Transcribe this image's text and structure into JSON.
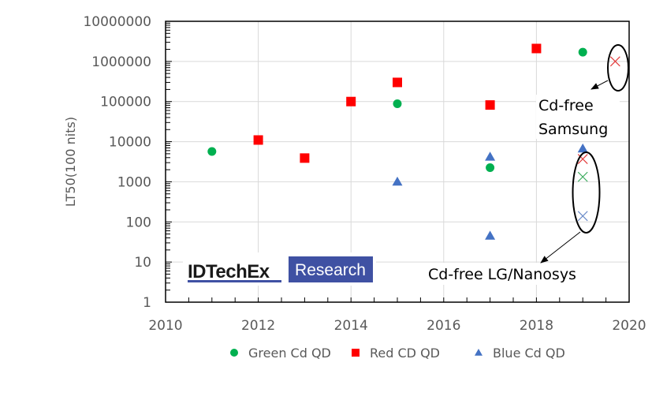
{
  "chart_data": {
    "type": "scatter",
    "title": "",
    "xlabel": "",
    "ylabel": "LT50(100 nits)",
    "xlim": [
      2010,
      2020
    ],
    "ylim": [
      1,
      10000000
    ],
    "yscale": "log",
    "grid": true,
    "x_ticks": [
      "2010",
      "2012",
      "2014",
      "2016",
      "2018",
      "2020"
    ],
    "y_ticks": [
      "1",
      "10",
      "100",
      "1000",
      "10000",
      "100000",
      "1000000",
      "10000000"
    ],
    "legend_position": "bottom",
    "series": [
      {
        "name": "Green Cd QD",
        "marker": "circle",
        "color": "#00b050",
        "points": [
          {
            "x": 2011,
            "y": 5700
          },
          {
            "x": 2015,
            "y": 88000
          },
          {
            "x": 2017,
            "y": 2250
          },
          {
            "x": 2019,
            "y": 1700000
          }
        ]
      },
      {
        "name": "Red CD QD",
        "marker": "square",
        "color": "#ff0000",
        "points": [
          {
            "x": 2012,
            "y": 11000
          },
          {
            "x": 2013,
            "y": 3900
          },
          {
            "x": 2014,
            "y": 100000
          },
          {
            "x": 2015,
            "y": 300000
          },
          {
            "x": 2017,
            "y": 82000
          },
          {
            "x": 2018,
            "y": 2100000
          }
        ]
      },
      {
        "name": "Blue Cd QD",
        "marker": "triangle",
        "color": "#4472c4",
        "points": [
          {
            "x": 2015,
            "y": 1000
          },
          {
            "x": 2017,
            "y": 4200
          },
          {
            "x": 2017,
            "y": 45
          },
          {
            "x": 2019,
            "y": 6700
          }
        ]
      }
    ],
    "cd_free_points": [
      {
        "group": "Samsung",
        "color_name": "red",
        "color": "#e23b3b",
        "x": 2019.7,
        "y": 1000000
      },
      {
        "group": "LG/Nanosys",
        "color_name": "red",
        "color": "#e23b3b",
        "x": 2019,
        "y": 3700
      },
      {
        "group": "LG/Nanosys",
        "color_name": "green",
        "color": "#3aaa5c",
        "x": 2019,
        "y": 1330
      },
      {
        "group": "LG/Nanosys",
        "color_name": "blue",
        "color": "#6b8cc9",
        "x": 2019,
        "y": 140
      }
    ],
    "annotations": {
      "samsung_line1": "Cd-free",
      "samsung_line2": "Samsung",
      "lg": "Cd-free LG/Nanosys"
    }
  },
  "logo": {
    "name": "IDTechEx",
    "tag": "Research",
    "accent": "#3f51a3"
  }
}
